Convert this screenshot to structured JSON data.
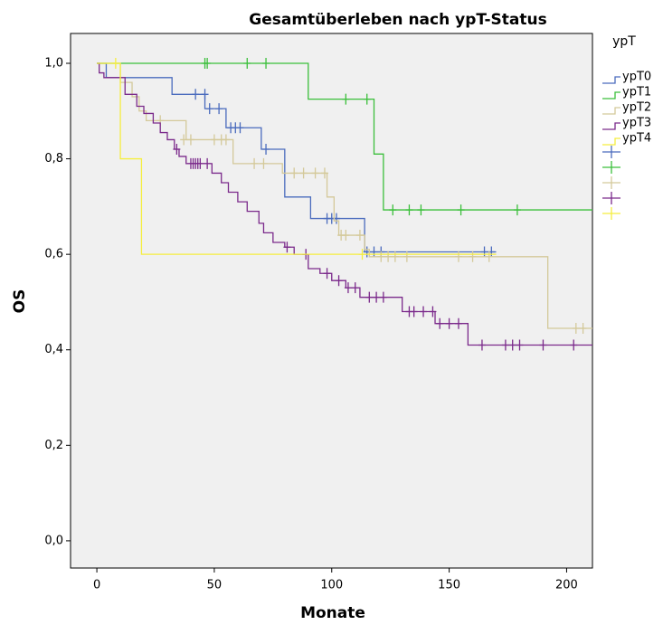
{
  "chart_data": {
    "type": "kaplan-meier",
    "title": "Gesamtüberleben nach ypT-Status",
    "x_label": "Monate",
    "y_label": "OS",
    "legend_title": "ypT",
    "xlim": [
      -11.2,
      211
    ],
    "ylim": [
      -0.057,
      1.0625
    ],
    "xticks": [
      0,
      50,
      100,
      150,
      200
    ],
    "yticks": [
      {
        "value": 0,
        "label": "0,0"
      },
      {
        "value": 0.2,
        "label": "0,2"
      },
      {
        "value": 0.4,
        "label": "0,4"
      },
      {
        "value": 0.6,
        "label": "0,6"
      },
      {
        "value": 0.8,
        "label": "0,8"
      },
      {
        "value": 1,
        "label": "1,0"
      }
    ],
    "series": [
      {
        "name": "ypT0",
        "color": "#4a6bbd",
        "x": [
          0,
          4,
          32,
          46,
          55,
          70,
          80,
          91,
          114,
          170
        ],
        "values": [
          1.0,
          0.97,
          0.935,
          0.905,
          0.865,
          0.82,
          0.72,
          0.675,
          0.605,
          0.605
        ],
        "censored_x": [
          42,
          46,
          48,
          52,
          57,
          59,
          61,
          72,
          98,
          100,
          102,
          115,
          118,
          121,
          165,
          168
        ],
        "censored_values": [
          0.935,
          0.935,
          0.905,
          0.905,
          0.865,
          0.865,
          0.865,
          0.82,
          0.675,
          0.675,
          0.675,
          0.605,
          0.605,
          0.605,
          0.605,
          0.605
        ]
      },
      {
        "name": "ypT1",
        "color": "#3bbf3b",
        "x": [
          0,
          90,
          118,
          122,
          211
        ],
        "values": [
          1.0,
          0.925,
          0.81,
          0.693,
          0.693
        ],
        "censored_x": [
          46,
          47,
          64,
          72,
          106,
          115,
          126,
          133,
          138,
          155,
          179
        ],
        "censored_values": [
          1.0,
          1.0,
          1.0,
          1.0,
          0.925,
          0.925,
          0.693,
          0.693,
          0.693,
          0.693,
          0.693
        ]
      },
      {
        "name": "ypT2",
        "color": "#d4c99a",
        "x": [
          0,
          10,
          15,
          18,
          21,
          38,
          58,
          79,
          98,
          101,
          103,
          114,
          116,
          192,
          211
        ],
        "values": [
          1.0,
          0.96,
          0.93,
          0.9,
          0.88,
          0.84,
          0.79,
          0.77,
          0.72,
          0.67,
          0.64,
          0.61,
          0.595,
          0.445,
          0.445
        ],
        "censored_x": [
          27,
          37,
          40,
          50,
          53,
          55,
          67,
          71,
          84,
          88,
          93,
          97,
          104,
          106,
          112,
          121,
          124,
          127,
          132,
          154,
          160,
          167,
          204,
          207
        ],
        "censored_values": [
          0.88,
          0.84,
          0.84,
          0.84,
          0.84,
          0.84,
          0.79,
          0.79,
          0.77,
          0.77,
          0.77,
          0.77,
          0.64,
          0.64,
          0.64,
          0.595,
          0.595,
          0.595,
          0.595,
          0.595,
          0.595,
          0.595,
          0.445,
          0.445
        ]
      },
      {
        "name": "ypT3",
        "color": "#7b2a8b",
        "x": [
          0,
          1,
          3,
          12,
          17,
          20,
          24,
          27,
          30,
          33,
          35,
          38,
          49,
          53,
          56,
          60,
          64,
          69,
          71,
          75,
          80,
          84,
          90,
          95,
          100,
          106,
          112,
          130,
          144,
          158,
          211
        ],
        "values": [
          1.0,
          0.98,
          0.97,
          0.935,
          0.91,
          0.895,
          0.875,
          0.855,
          0.84,
          0.82,
          0.805,
          0.79,
          0.77,
          0.75,
          0.73,
          0.71,
          0.69,
          0.665,
          0.645,
          0.625,
          0.615,
          0.6,
          0.57,
          0.56,
          0.545,
          0.53,
          0.51,
          0.48,
          0.455,
          0.41,
          0.41
        ],
        "censored_x": [
          34,
          40,
          41,
          42,
          43,
          44,
          47,
          81,
          89,
          98,
          103,
          107,
          110,
          116,
          119,
          122,
          133,
          135,
          139,
          143,
          146,
          150,
          154,
          164,
          174,
          177,
          180,
          190,
          203
        ],
        "censored_values": [
          0.82,
          0.79,
          0.79,
          0.79,
          0.79,
          0.79,
          0.79,
          0.615,
          0.6,
          0.56,
          0.545,
          0.53,
          0.53,
          0.51,
          0.51,
          0.51,
          0.48,
          0.48,
          0.48,
          0.48,
          0.455,
          0.455,
          0.455,
          0.41,
          0.41,
          0.41,
          0.41,
          0.41,
          0.41
        ]
      },
      {
        "name": "ypT4",
        "color": "#f5ee3f",
        "x": [
          0,
          10,
          19,
          170
        ],
        "values": [
          1.0,
          0.8,
          0.6,
          0.6
        ],
        "censored_x": [
          8,
          113
        ],
        "censored_values": [
          1.0,
          0.6
        ]
      }
    ]
  }
}
